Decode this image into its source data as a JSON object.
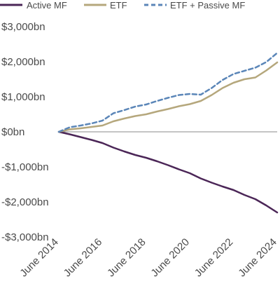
{
  "chart_data": {
    "type": "line",
    "title": "",
    "xlabel": "",
    "ylabel": "",
    "ylim": [
      -3000,
      3000
    ],
    "yticks": [
      3000,
      2000,
      1000,
      0,
      -1000,
      -2000,
      -3000
    ],
    "ytick_labels": [
      "$3,000bn",
      "$2,000bn",
      "$1,000bn",
      "$0bn",
      "-$1,000bn",
      "-$2,000bn",
      "-$3,000bn"
    ],
    "xlim": [
      2014.5,
      2024.5
    ],
    "xticks": [
      2014.5,
      2016.5,
      2018.5,
      2020.5,
      2022.5,
      2024.5
    ],
    "xtick_labels": [
      "June 2014",
      "June 2016",
      "June 2018",
      "June 2020",
      "June 2022",
      "June 2024"
    ],
    "grid": false,
    "zero_line": true,
    "legend_position": "top",
    "series": [
      {
        "name": "Active MF",
        "color": "#4b2657",
        "dash": "solid",
        "x": [
          2014.5,
          2015.0,
          2015.5,
          2016.0,
          2016.5,
          2017.0,
          2017.5,
          2018.0,
          2018.5,
          2019.0,
          2019.5,
          2020.0,
          2020.5,
          2021.0,
          2021.5,
          2022.0,
          2022.5,
          2023.0,
          2023.5,
          2024.0,
          2024.5
        ],
        "y": [
          0,
          -70,
          -150,
          -230,
          -320,
          -450,
          -560,
          -660,
          -740,
          -840,
          -950,
          -1070,
          -1180,
          -1330,
          -1450,
          -1560,
          -1660,
          -1800,
          -1920,
          -2100,
          -2300
        ]
      },
      {
        "name": "ETF",
        "color": "#b5a77c",
        "dash": "solid",
        "x": [
          2014.5,
          2015.0,
          2015.5,
          2016.0,
          2016.5,
          2017.0,
          2017.5,
          2018.0,
          2018.5,
          2019.0,
          2019.5,
          2020.0,
          2020.5,
          2021.0,
          2021.5,
          2022.0,
          2022.5,
          2023.0,
          2023.5,
          2024.0,
          2024.5
        ],
        "y": [
          0,
          70,
          100,
          140,
          180,
          300,
          380,
          450,
          500,
          580,
          650,
          730,
          790,
          880,
          1050,
          1250,
          1400,
          1500,
          1550,
          1750,
          1980
        ]
      },
      {
        "name": "ETF + Passive MF",
        "color": "#5b86b8",
        "dash": "dashed",
        "x": [
          2014.5,
          2015.0,
          2015.5,
          2016.0,
          2016.5,
          2017.0,
          2017.5,
          2018.0,
          2018.5,
          2019.0,
          2019.5,
          2020.0,
          2020.5,
          2021.0,
          2021.5,
          2022.0,
          2022.5,
          2023.0,
          2023.5,
          2024.0,
          2024.5
        ],
        "y": [
          0,
          130,
          180,
          240,
          320,
          530,
          620,
          720,
          780,
          880,
          970,
          1050,
          1080,
          1060,
          1250,
          1480,
          1650,
          1740,
          1830,
          1990,
          2250
        ]
      }
    ]
  }
}
